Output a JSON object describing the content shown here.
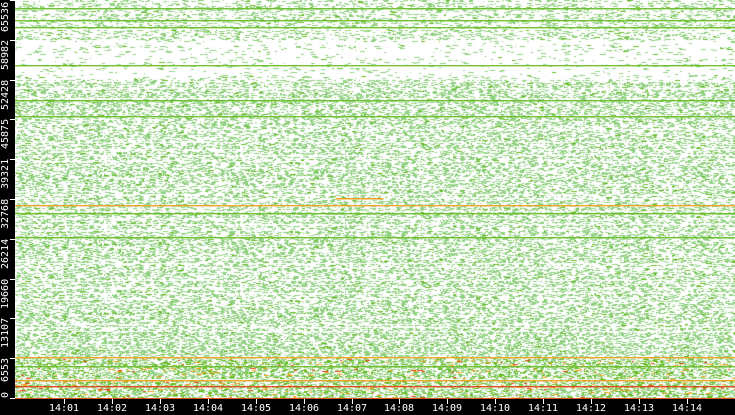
{
  "chart_data": {
    "type": "heatmap",
    "title": "",
    "xlabel": "",
    "ylabel": "",
    "x_ticks": [
      "14:01",
      "14:02",
      "14:03",
      "14:04",
      "14:05",
      "14:06",
      "14:07",
      "14:08",
      "14:09",
      "14:10",
      "14:11",
      "14:12",
      "14:13",
      "14:14"
    ],
    "xlim_minutes_after_1400": [
      0,
      15
    ],
    "y_ticks": [
      "0",
      "6553",
      "13107",
      "19660",
      "26214",
      "32768",
      "39321",
      "45875",
      "52428",
      "58982",
      "65536"
    ],
    "ylim": [
      0,
      65536
    ],
    "grid": false,
    "colors": {
      "background": "#ffffff",
      "low": "#90d080",
      "medium": "#66bb22",
      "high": "#f0a020",
      "peak": "#e04010",
      "axis": "#000000",
      "axis_text": "#ffffff"
    },
    "density_by_port_range": [
      {
        "from": 0,
        "to": 6553,
        "density": 0.92
      },
      {
        "from": 6553,
        "to": 13107,
        "density": 0.62
      },
      {
        "from": 13107,
        "to": 45875,
        "density": 0.5
      },
      {
        "from": 45875,
        "to": 52428,
        "density": 0.55
      },
      {
        "from": 52428,
        "to": 58982,
        "density": 0.08
      },
      {
        "from": 58982,
        "to": 65536,
        "density": 0.3
      }
    ],
    "persistent_ports": [
      {
        "port": 64218,
        "level": "medium"
      },
      {
        "port": 62242,
        "level": "medium"
      },
      {
        "port": 61090,
        "level": "medium"
      },
      {
        "port": 54832,
        "level": "medium"
      },
      {
        "port": 49068,
        "level": "medium"
      },
      {
        "port": 46434,
        "level": "medium"
      },
      {
        "port": 31780,
        "level": "high"
      },
      {
        "port": 30463,
        "level": "medium"
      },
      {
        "port": 26511,
        "level": "medium"
      },
      {
        "port": 6751,
        "level": "high"
      },
      {
        "port": 5269,
        "level": "medium"
      },
      {
        "port": 2964,
        "level": "high"
      },
      {
        "port": 1976,
        "level": "peak"
      },
      {
        "port": 0,
        "level": "peak"
      }
    ],
    "burst": {
      "port": 32933,
      "start": "14:06:40",
      "end": "14:07:40",
      "level": "high"
    }
  }
}
